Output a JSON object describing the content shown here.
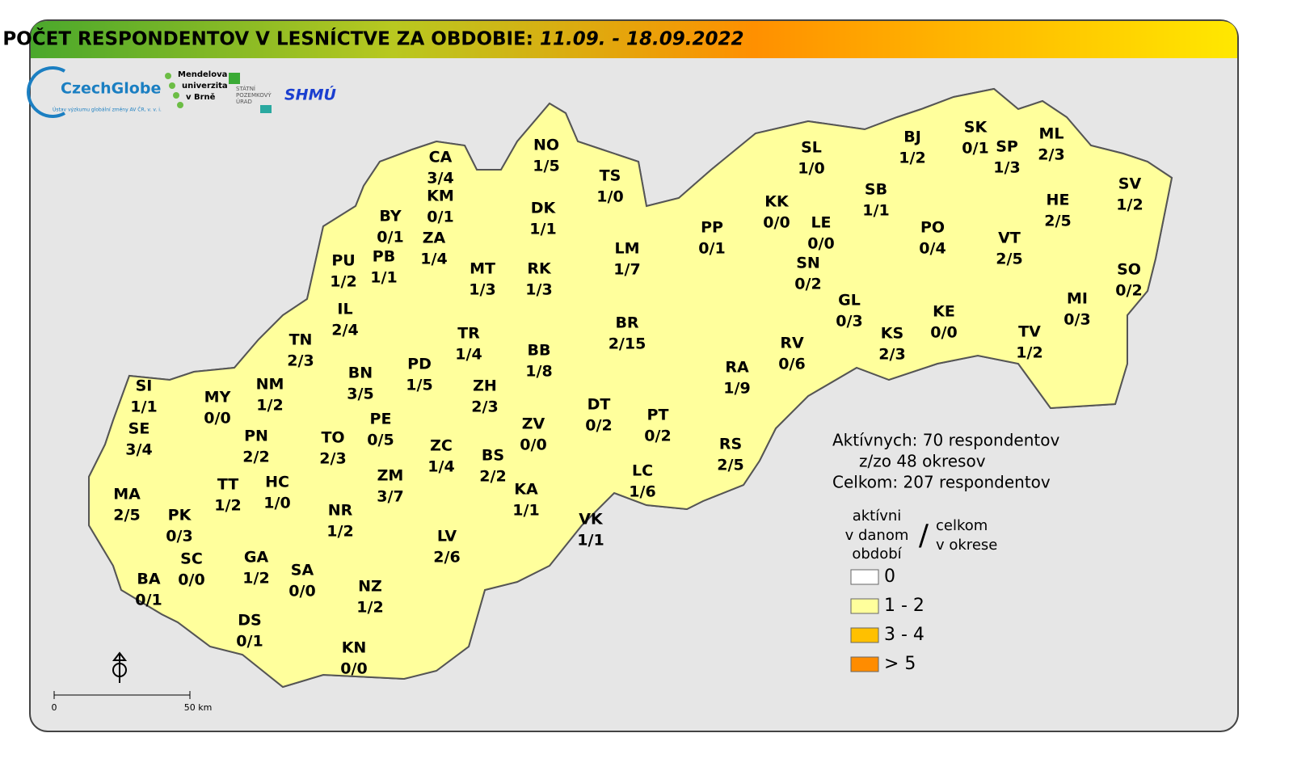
{
  "header": {
    "title": "POČET RESPONDENTOV V LESNÍCTVE ZA OBDOBIE:",
    "period": "11.09. - 18.09.2022"
  },
  "logos": {
    "czechglobe": "CzechGlobe",
    "czechglobe_sub": "Ústav výzkumu globální změny AV ČR, v. v. i.",
    "mendel": [
      "Mendelova",
      "univerzita",
      "v Brně"
    ],
    "spu": [
      "STÁTNÍ",
      "POZEMKOVÝ",
      "ÚRAD"
    ],
    "shmu": "SHMÚ"
  },
  "districts": [
    {
      "code": "CA",
      "counts": "3/4",
      "color": "#ffc000"
    },
    {
      "code": "KM",
      "counts": "0/1",
      "color": "#ffffff"
    },
    {
      "code": "BY",
      "counts": "0/1",
      "color": "#ffffff"
    },
    {
      "code": "ZA",
      "counts": "1/4",
      "color": "#ffff9c"
    },
    {
      "code": "NO",
      "counts": "1/5",
      "color": "#ffff9c"
    },
    {
      "code": "TS",
      "counts": "1/0",
      "color": "#ffff9c"
    },
    {
      "code": "DK",
      "counts": "1/1",
      "color": "#ffff9c"
    },
    {
      "code": "PU",
      "counts": "1/2",
      "color": "#ffff9c"
    },
    {
      "code": "PB",
      "counts": "1/1",
      "color": "#ffff9c"
    },
    {
      "code": "MT",
      "counts": "1/3",
      "color": "#ffff9c"
    },
    {
      "code": "RK",
      "counts": "1/3",
      "color": "#ffff9c"
    },
    {
      "code": "LM",
      "counts": "1/7",
      "color": "#ffff9c"
    },
    {
      "code": "PP",
      "counts": "0/1",
      "color": "#ffffff"
    },
    {
      "code": "KK",
      "counts": "0/0",
      "color": "#ffffff"
    },
    {
      "code": "LE",
      "counts": "0/0",
      "color": "#ffffff"
    },
    {
      "code": "SN",
      "counts": "0/2",
      "color": "#ffffff"
    },
    {
      "code": "SL",
      "counts": "1/0",
      "color": "#ffff9c"
    },
    {
      "code": "BJ",
      "counts": "1/2",
      "color": "#ffff9c"
    },
    {
      "code": "SK",
      "counts": "0/1",
      "color": "#ffffff"
    },
    {
      "code": "SP",
      "counts": "1/3",
      "color": "#ffff9c"
    },
    {
      "code": "ML",
      "counts": "2/3",
      "color": "#ffff9c"
    },
    {
      "code": "SB",
      "counts": "1/1",
      "color": "#ffff9c"
    },
    {
      "code": "PO",
      "counts": "0/4",
      "color": "#ffffff"
    },
    {
      "code": "HE",
      "counts": "2/5",
      "color": "#ffff9c"
    },
    {
      "code": "SV",
      "counts": "1/2",
      "color": "#ffff9c"
    },
    {
      "code": "VT",
      "counts": "2/5",
      "color": "#ffff9c"
    },
    {
      "code": "SO",
      "counts": "0/2",
      "color": "#ffffff"
    },
    {
      "code": "MI",
      "counts": "0/3",
      "color": "#ffffff"
    },
    {
      "code": "GL",
      "counts": "0/3",
      "color": "#ffffff"
    },
    {
      "code": "KE",
      "counts": "0/0",
      "color": "#ffffff"
    },
    {
      "code": "KS",
      "counts": "2/3",
      "color": "#ffff9c"
    },
    {
      "code": "TV",
      "counts": "1/2",
      "color": "#ffff9c"
    },
    {
      "code": "RV",
      "counts": "0/6",
      "color": "#ffffff"
    },
    {
      "code": "RA",
      "counts": "1/9",
      "color": "#ffff9c"
    },
    {
      "code": "IL",
      "counts": "2/4",
      "color": "#ffff9c"
    },
    {
      "code": "TN",
      "counts": "2/3",
      "color": "#ffff9c"
    },
    {
      "code": "BN",
      "counts": "3/5",
      "color": "#ffc000"
    },
    {
      "code": "PD",
      "counts": "1/5",
      "color": "#ffff9c"
    },
    {
      "code": "TR",
      "counts": "1/4",
      "color": "#ffff9c"
    },
    {
      "code": "BB",
      "counts": "1/8",
      "color": "#ffff9c"
    },
    {
      "code": "BR",
      "counts": "2/15",
      "color": "#ffff9c"
    },
    {
      "code": "NM",
      "counts": "1/2",
      "color": "#ffff9c"
    },
    {
      "code": "MY",
      "counts": "0/0",
      "color": "#ffffff"
    },
    {
      "code": "SI",
      "counts": "1/1",
      "color": "#ffff9c"
    },
    {
      "code": "SE",
      "counts": "3/4",
      "color": "#ffc000"
    },
    {
      "code": "PE",
      "counts": "0/5",
      "color": "#ffffff"
    },
    {
      "code": "ZH",
      "counts": "2/3",
      "color": "#ffff9c"
    },
    {
      "code": "ZV",
      "counts": "0/0",
      "color": "#ffffff"
    },
    {
      "code": "DT",
      "counts": "0/2",
      "color": "#ffffff"
    },
    {
      "code": "PT",
      "counts": "0/2",
      "color": "#ffffff"
    },
    {
      "code": "PN",
      "counts": "2/2",
      "color": "#ffff9c"
    },
    {
      "code": "TO",
      "counts": "2/3",
      "color": "#ffff9c"
    },
    {
      "code": "ZC",
      "counts": "1/4",
      "color": "#ffff9c"
    },
    {
      "code": "BS",
      "counts": "2/2",
      "color": "#ffff9c"
    },
    {
      "code": "RS",
      "counts": "2/5",
      "color": "#ffff9c"
    },
    {
      "code": "ZM",
      "counts": "3/7",
      "color": "#ffc000"
    },
    {
      "code": "LC",
      "counts": "1/6",
      "color": "#ffff9c"
    },
    {
      "code": "KA",
      "counts": "1/1",
      "color": "#ffff9c"
    },
    {
      "code": "MA",
      "counts": "2/5",
      "color": "#ffff9c"
    },
    {
      "code": "TT",
      "counts": "1/2",
      "color": "#ffff9c"
    },
    {
      "code": "HC",
      "counts": "1/0",
      "color": "#ffff9c"
    },
    {
      "code": "NR",
      "counts": "1/2",
      "color": "#ffff9c"
    },
    {
      "code": "VK",
      "counts": "1/1",
      "color": "#ffff9c"
    },
    {
      "code": "PK",
      "counts": "0/3",
      "color": "#ffffff"
    },
    {
      "code": "SC",
      "counts": "0/0",
      "color": "#ffffff"
    },
    {
      "code": "GA",
      "counts": "1/2",
      "color": "#ffff9c"
    },
    {
      "code": "SA",
      "counts": "0/0",
      "color": "#ffffff"
    },
    {
      "code": "LV",
      "counts": "2/6",
      "color": "#ffff9c"
    },
    {
      "code": "BA",
      "counts": "0/1",
      "color": "#ffffff"
    },
    {
      "code": "NZ",
      "counts": "1/2",
      "color": "#ffff9c"
    },
    {
      "code": "DS",
      "counts": "0/1",
      "color": "#ffffff"
    },
    {
      "code": "KN",
      "counts": "0/0",
      "color": "#ffffff"
    }
  ],
  "stats": [
    "Aktívnych: 70 respondentov",
    "z/zo 48 okresov",
    "Celkom: 207 respondentov"
  ],
  "legend": {
    "left": [
      "aktívni",
      "v danom",
      "období"
    ],
    "slash": "/",
    "right": [
      "celkom",
      "v okrese"
    ],
    "items": [
      {
        "label": "0",
        "color": "#ffffff"
      },
      {
        "label": "1 - 2",
        "color": "#ffff9c"
      },
      {
        "label": "3 - 4",
        "color": "#ffc000"
      },
      {
        "label": "> 5",
        "color": "#ff8c00"
      }
    ]
  },
  "scale": {
    "start": "0",
    "end": "50 km"
  }
}
